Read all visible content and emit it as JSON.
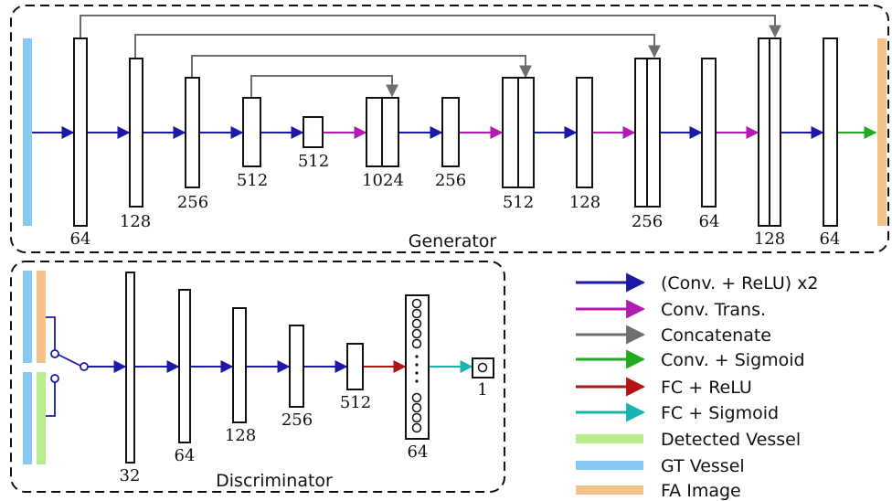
{
  "generator": {
    "title": "Generator",
    "labels": [
      "64",
      "128",
      "256",
      "512",
      "512",
      "1024",
      "256",
      "512",
      "128",
      "256",
      "64",
      "128",
      "64"
    ]
  },
  "discriminator": {
    "title": "Discriminator",
    "labels": [
      "32",
      "64",
      "128",
      "256",
      "512",
      "64",
      "1"
    ]
  },
  "legend": [
    {
      "label": "(Conv. + ReLU) x2",
      "color": "#1a1aa6",
      "kind": "arrow"
    },
    {
      "label": "Conv. Trans.",
      "color": "#b31bb3",
      "kind": "arrow"
    },
    {
      "label": "Concatenate",
      "color": "#6e6e6e",
      "kind": "arrow"
    },
    {
      "label": "Conv. + Sigmoid",
      "color": "#1faa1f",
      "kind": "arrow"
    },
    {
      "label": "FC + ReLU",
      "color": "#b31313",
      "kind": "arrow"
    },
    {
      "label": "FC + Sigmoid",
      "color": "#19b3b3",
      "kind": "arrow"
    },
    {
      "label": "Detected Vessel",
      "color": "#b9ec8a",
      "kind": "bar"
    },
    {
      "label": "GT Vessel",
      "color": "#86c9f2",
      "kind": "bar"
    },
    {
      "label": "FA Image",
      "color": "#f5c38a",
      "kind": "bar"
    }
  ]
}
